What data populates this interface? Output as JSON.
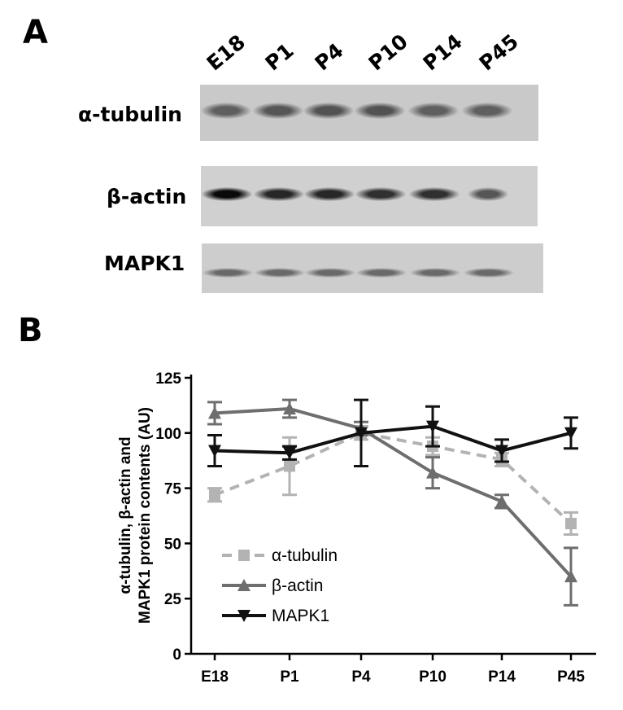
{
  "panels": {
    "a": "A",
    "b": "B"
  },
  "blot": {
    "lanes": [
      "E18",
      "P1",
      "P4",
      "P10",
      "P14",
      "P45"
    ],
    "rows": [
      {
        "label": "α-tubulin",
        "intensities": [
          0.55,
          0.6,
          0.62,
          0.62,
          0.55,
          0.55
        ]
      },
      {
        "label": "β-actin",
        "intensities": [
          1.0,
          0.85,
          0.85,
          0.8,
          0.8,
          0.6
        ]
      },
      {
        "label": "MAPK1",
        "intensities": [
          0.5,
          0.5,
          0.5,
          0.5,
          0.5,
          0.5
        ]
      }
    ]
  },
  "chart_data": {
    "type": "line",
    "title": "",
    "xlabel": "",
    "ylabel": "α-tubulin, β-actin and MAPK1 protein contents (AU)",
    "categories": [
      "E18",
      "P1",
      "P4",
      "P10",
      "P14",
      "P45"
    ],
    "ylim": [
      0,
      125
    ],
    "yticks": [
      0,
      25,
      50,
      75,
      100,
      125
    ],
    "grid": false,
    "legend_position": "bottom-left",
    "series": [
      {
        "name": "α-tubulin",
        "values": [
          72,
          85,
          100,
          94,
          88,
          59
        ],
        "errors": [
          3,
          13,
          3,
          4,
          3,
          5
        ],
        "color": "#b3b3b3",
        "dash": "dashed",
        "marker": "square"
      },
      {
        "name": "β-actin",
        "values": [
          109,
          111,
          102,
          82,
          69,
          35
        ],
        "errors": [
          5,
          4,
          3,
          7,
          3,
          13
        ],
        "color": "#6e6e6e",
        "dash": "solid",
        "marker": "triangle-up"
      },
      {
        "name": "MAPK1",
        "values": [
          92,
          91,
          100,
          103,
          92,
          100
        ],
        "errors": [
          7,
          3,
          15,
          9,
          5,
          7
        ],
        "color": "#111111",
        "dash": "solid",
        "marker": "triangle-down"
      }
    ]
  }
}
